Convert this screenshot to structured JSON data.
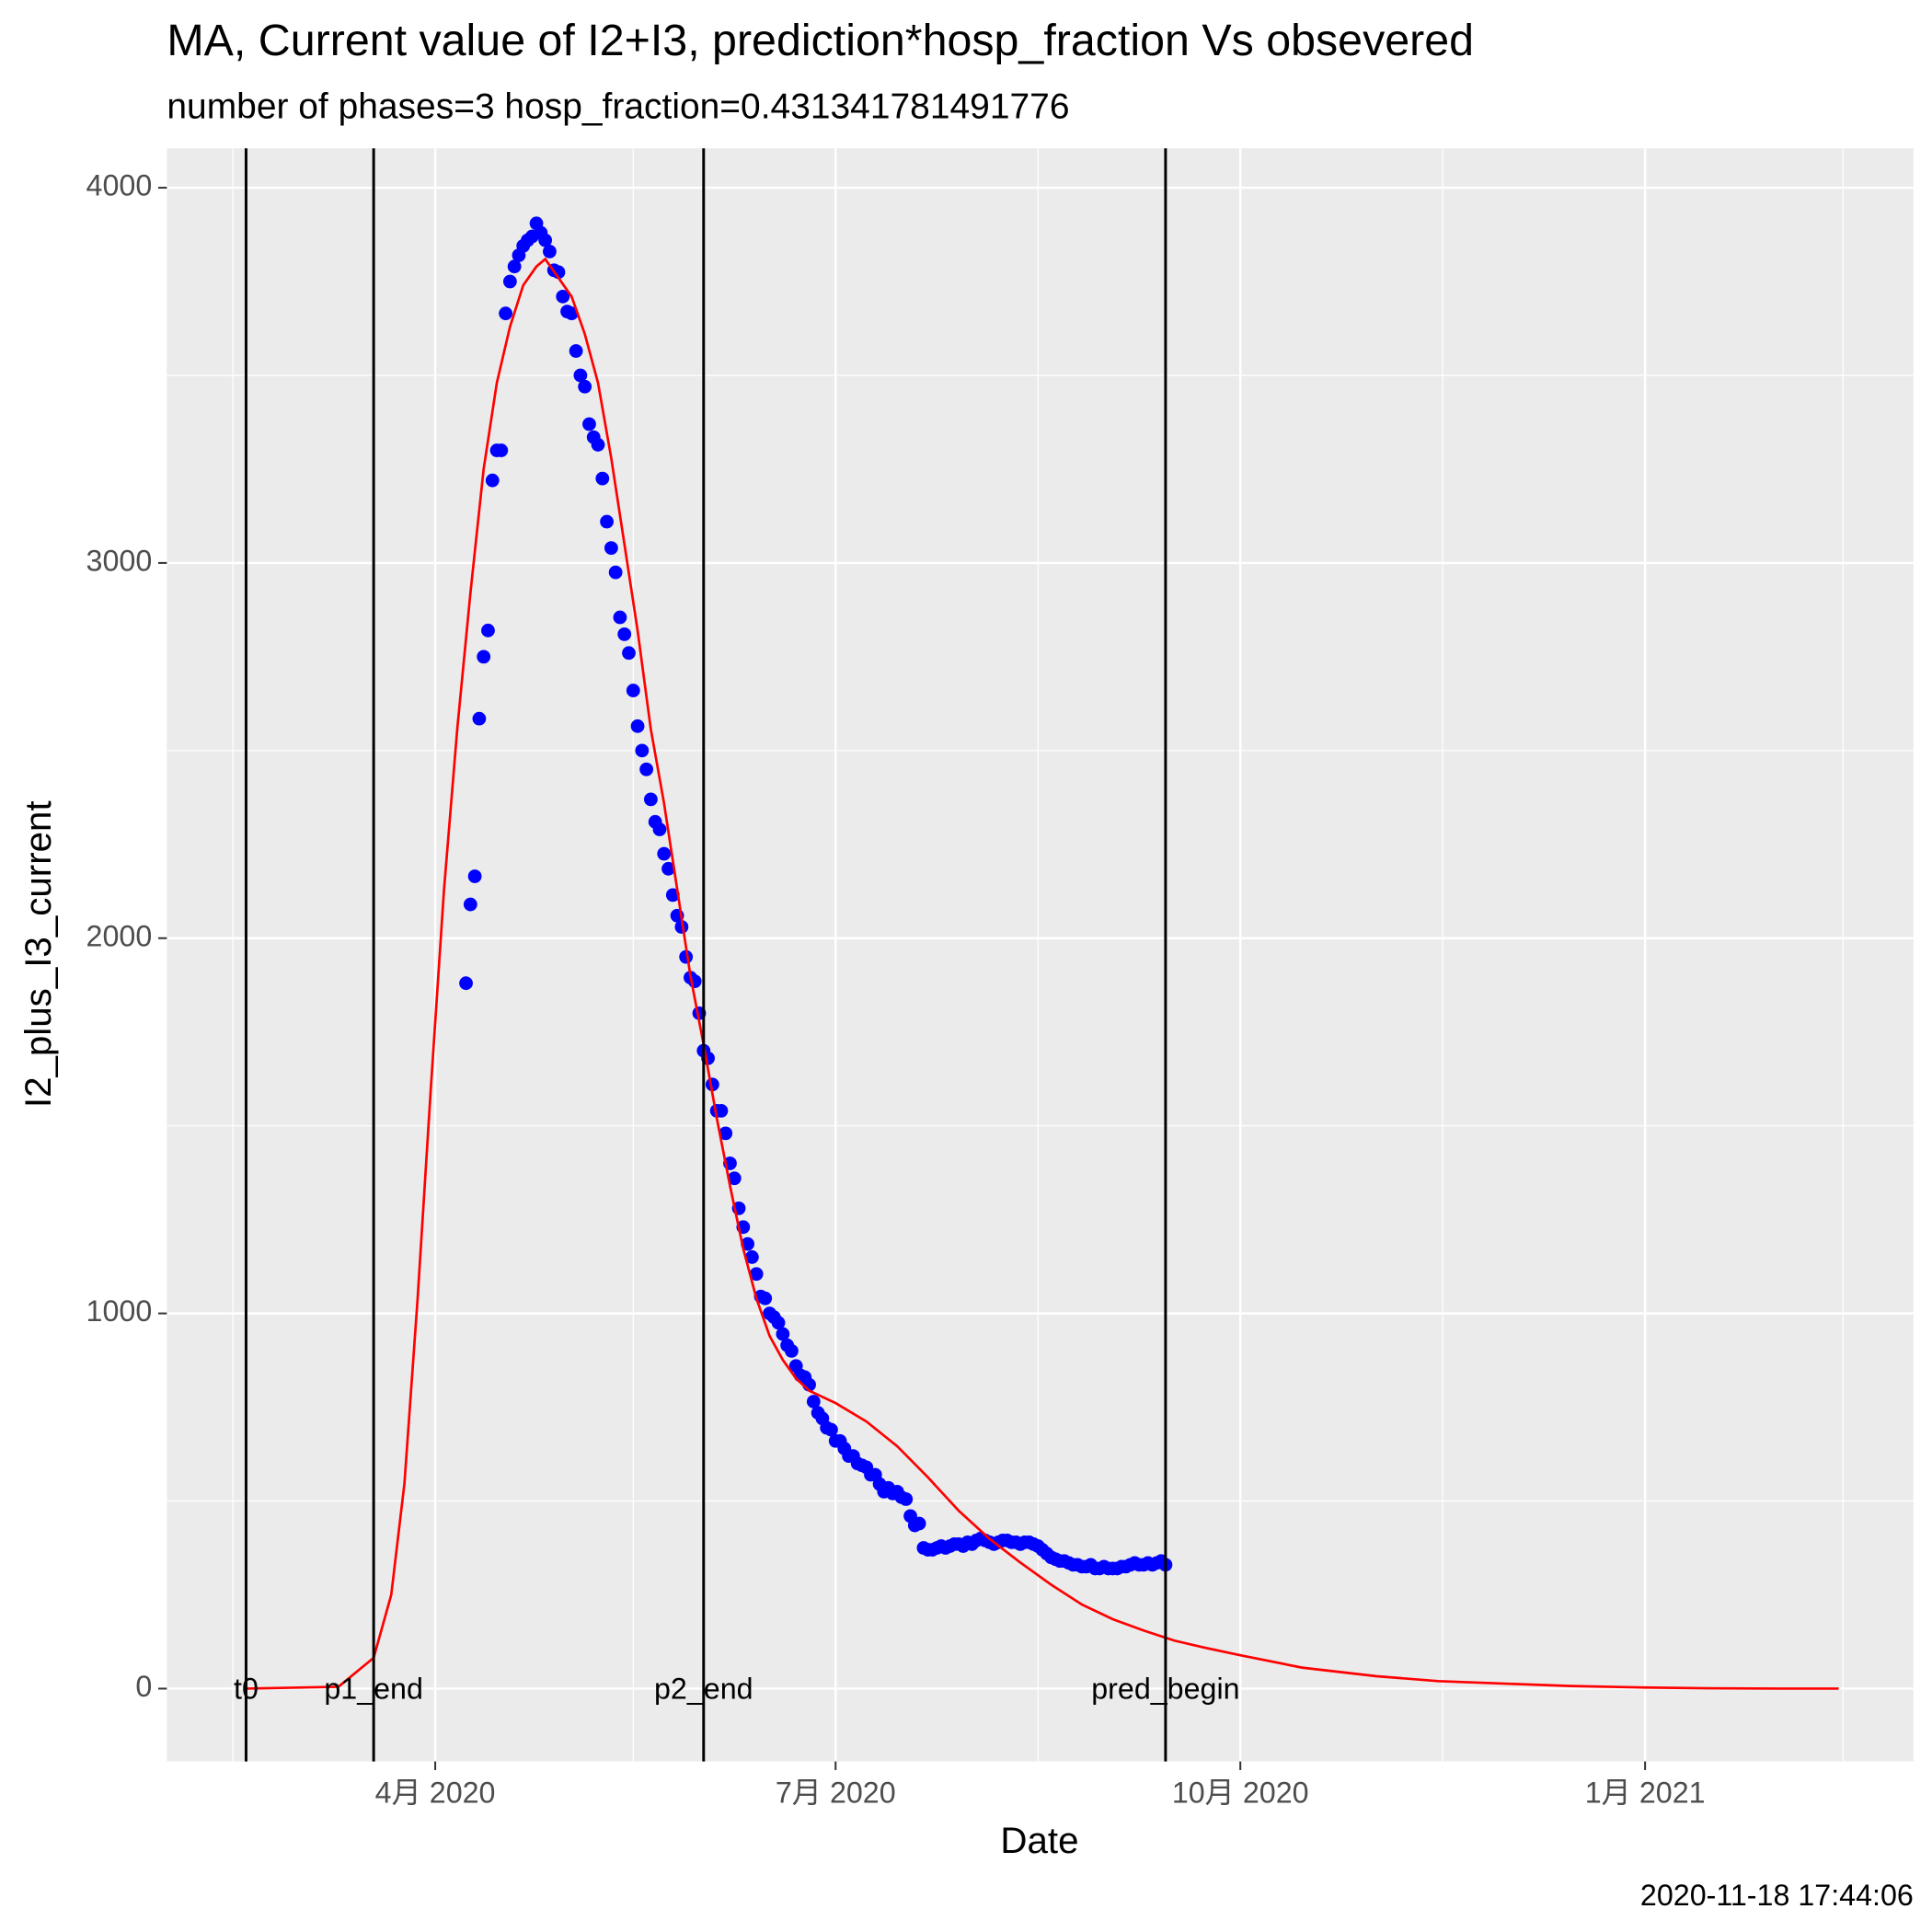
{
  "chart_data": {
    "type": "line",
    "title": "MA, Current value of I2+I3, prediction*hosp_fraction Vs obsevered",
    "subtitle": "number of phases=3   hosp_fraction=0.431341781491776",
    "x_label": "Date",
    "y_label": "I2_plus_I3_current",
    "caption": "2020-11-18 17:44:06",
    "grid": true,
    "xlim": [
      "2020-01-31",
      "2021-03-03"
    ],
    "xticks": [
      {
        "value": "2020-04-01",
        "label": "4月 2020"
      },
      {
        "value": "2020-07-01",
        "label": "7月 2020"
      },
      {
        "value": "2020-10-01",
        "label": "10月 2020"
      },
      {
        "value": "2021-01-01",
        "label": "1月 2021"
      }
    ],
    "x_minor_gridlines": [
      "2020-02-15",
      "2020-05-16",
      "2020-08-16",
      "2020-11-16",
      "2021-02-15"
    ],
    "ylim": [
      -194,
      4105
    ],
    "yticks": [
      0,
      1000,
      2000,
      3000,
      4000
    ],
    "y_minor_gridlines": [
      500,
      1500,
      2500,
      3500
    ],
    "vlines": [
      {
        "x": "2020-02-18",
        "label": "t0"
      },
      {
        "x": "2020-03-18",
        "label": "p1_end"
      },
      {
        "x": "2020-06-01",
        "label": "p2_end"
      },
      {
        "x": "2020-09-14",
        "label": "pred_begin"
      }
    ],
    "series": [
      {
        "type": "scatter",
        "color": "#0000ff",
        "x": [
          "2020-04-08",
          "2020-04-09",
          "2020-04-10",
          "2020-04-11",
          "2020-04-12",
          "2020-04-13",
          "2020-04-14",
          "2020-04-15",
          "2020-04-16",
          "2020-04-17",
          "2020-04-18",
          "2020-04-19",
          "2020-04-20",
          "2020-04-21",
          "2020-04-22",
          "2020-04-23",
          "2020-04-24",
          "2020-04-25",
          "2020-04-26",
          "2020-04-27",
          "2020-04-28",
          "2020-04-29",
          "2020-04-30",
          "2020-05-01",
          "2020-05-02",
          "2020-05-03",
          "2020-05-04",
          "2020-05-05",
          "2020-05-06",
          "2020-05-07",
          "2020-05-08",
          "2020-05-09",
          "2020-05-10",
          "2020-05-11",
          "2020-05-12",
          "2020-05-13",
          "2020-05-14",
          "2020-05-15",
          "2020-05-16",
          "2020-05-17",
          "2020-05-18",
          "2020-05-19",
          "2020-05-20",
          "2020-05-21",
          "2020-05-22",
          "2020-05-23",
          "2020-05-24",
          "2020-05-25",
          "2020-05-26",
          "2020-05-27",
          "2020-05-28",
          "2020-05-29",
          "2020-05-30",
          "2020-05-31",
          "2020-06-01",
          "2020-06-02",
          "2020-06-03",
          "2020-06-04",
          "2020-06-05",
          "2020-06-06",
          "2020-06-07",
          "2020-06-08",
          "2020-06-09",
          "2020-06-10",
          "2020-06-11",
          "2020-06-12",
          "2020-06-13",
          "2020-06-14",
          "2020-06-15",
          "2020-06-16",
          "2020-06-17",
          "2020-06-18",
          "2020-06-19",
          "2020-06-20",
          "2020-06-21",
          "2020-06-22",
          "2020-06-23",
          "2020-06-24",
          "2020-06-25",
          "2020-06-26",
          "2020-06-27",
          "2020-06-28",
          "2020-06-29",
          "2020-06-30",
          "2020-07-01",
          "2020-07-02",
          "2020-07-03",
          "2020-07-04",
          "2020-07-05",
          "2020-07-06",
          "2020-07-07",
          "2020-07-08",
          "2020-07-09",
          "2020-07-10",
          "2020-07-11",
          "2020-07-12",
          "2020-07-13",
          "2020-07-14",
          "2020-07-15",
          "2020-07-16",
          "2020-07-17",
          "2020-07-18",
          "2020-07-19",
          "2020-07-20",
          "2020-07-21",
          "2020-07-22",
          "2020-07-23",
          "2020-07-24",
          "2020-07-25",
          "2020-07-26",
          "2020-07-27",
          "2020-07-28",
          "2020-07-29",
          "2020-07-30",
          "2020-07-31",
          "2020-08-01",
          "2020-08-02",
          "2020-08-03",
          "2020-08-04",
          "2020-08-05",
          "2020-08-06",
          "2020-08-07",
          "2020-08-08",
          "2020-08-09",
          "2020-08-10",
          "2020-08-11",
          "2020-08-12",
          "2020-08-13",
          "2020-08-14",
          "2020-08-15",
          "2020-08-16",
          "2020-08-17",
          "2020-08-18",
          "2020-08-19",
          "2020-08-20",
          "2020-08-21",
          "2020-08-22",
          "2020-08-23",
          "2020-08-24",
          "2020-08-25",
          "2020-08-26",
          "2020-08-27",
          "2020-08-28",
          "2020-08-29",
          "2020-08-30",
          "2020-08-31",
          "2020-09-01",
          "2020-09-02",
          "2020-09-03",
          "2020-09-04",
          "2020-09-05",
          "2020-09-06",
          "2020-09-07",
          "2020-09-08",
          "2020-09-09",
          "2020-09-10",
          "2020-09-11",
          "2020-09-12",
          "2020-09-13",
          "2020-09-14"
        ],
        "values": [
          1880,
          2090,
          2165,
          2585,
          2750,
          2820,
          3220,
          3300,
          3300,
          3665,
          3750,
          3790,
          3820,
          3845,
          3860,
          3870,
          3905,
          3880,
          3860,
          3830,
          3780,
          3775,
          3710,
          3670,
          3665,
          3565,
          3500,
          3470,
          3370,
          3335,
          3315,
          3225,
          3110,
          3040,
          2975,
          2855,
          2810,
          2760,
          2660,
          2565,
          2500,
          2450,
          2370,
          2310,
          2290,
          2225,
          2185,
          2115,
          2060,
          2030,
          1950,
          1895,
          1885,
          1800,
          1700,
          1680,
          1610,
          1540,
          1540,
          1480,
          1400,
          1360,
          1280,
          1230,
          1185,
          1150,
          1105,
          1045,
          1040,
          1000,
          990,
          975,
          945,
          915,
          900,
          860,
          835,
          830,
          810,
          765,
          735,
          720,
          695,
          690,
          660,
          660,
          640,
          620,
          620,
          600,
          595,
          590,
          570,
          570,
          545,
          525,
          535,
          520,
          525,
          510,
          505,
          460,
          435,
          440,
          375,
          370,
          370,
          375,
          380,
          375,
          380,
          385,
          385,
          380,
          390,
          385,
          395,
          400,
          395,
          390,
          385,
          390,
          395,
          395,
          390,
          390,
          385,
          390,
          390,
          385,
          380,
          370,
          360,
          350,
          345,
          340,
          340,
          335,
          330,
          330,
          325,
          325,
          330,
          320,
          320,
          325,
          320,
          320,
          320,
          325,
          325,
          330,
          335,
          330,
          330,
          335,
          330,
          335,
          340,
          330
        ]
      },
      {
        "type": "line",
        "color": "#ff0000",
        "x": [
          "2020-02-18",
          "2020-03-10",
          "2020-03-18",
          "2020-03-22",
          "2020-03-25",
          "2020-03-28",
          "2020-03-31",
          "2020-04-03",
          "2020-04-06",
          "2020-04-09",
          "2020-04-12",
          "2020-04-15",
          "2020-04-18",
          "2020-04-21",
          "2020-04-24",
          "2020-04-26",
          "2020-04-29",
          "2020-05-02",
          "2020-05-05",
          "2020-05-08",
          "2020-05-11",
          "2020-05-14",
          "2020-05-17",
          "2020-05-20",
          "2020-05-23",
          "2020-05-26",
          "2020-05-29",
          "2020-06-01",
          "2020-06-04",
          "2020-06-07",
          "2020-06-10",
          "2020-06-13",
          "2020-06-16",
          "2020-06-19",
          "2020-06-22",
          "2020-06-25",
          "2020-07-01",
          "2020-07-08",
          "2020-07-15",
          "2020-07-22",
          "2020-07-29",
          "2020-08-05",
          "2020-08-12",
          "2020-08-19",
          "2020-08-26",
          "2020-09-02",
          "2020-09-09",
          "2020-09-16",
          "2020-09-23",
          "2020-10-01",
          "2020-10-15",
          "2020-11-01",
          "2020-11-15",
          "2020-12-01",
          "2020-12-15",
          "2021-01-01",
          "2021-01-15",
          "2021-02-01",
          "2021-02-14"
        ],
        "values": [
          0,
          5,
          82,
          250,
          547,
          1040,
          1600,
          2130,
          2557,
          2920,
          3250,
          3480,
          3630,
          3740,
          3790,
          3810,
          3760,
          3710,
          3610,
          3480,
          3280,
          3050,
          2820,
          2557,
          2360,
          2130,
          1900,
          1717,
          1520,
          1340,
          1173,
          1040,
          940,
          876,
          827,
          794,
          761,
          712,
          646,
          563,
          474,
          399,
          336,
          277,
          224,
          185,
          155,
          128,
          109,
          89,
          56,
          33,
          20,
          13,
          7,
          3,
          1,
          0,
          0
        ]
      }
    ]
  }
}
